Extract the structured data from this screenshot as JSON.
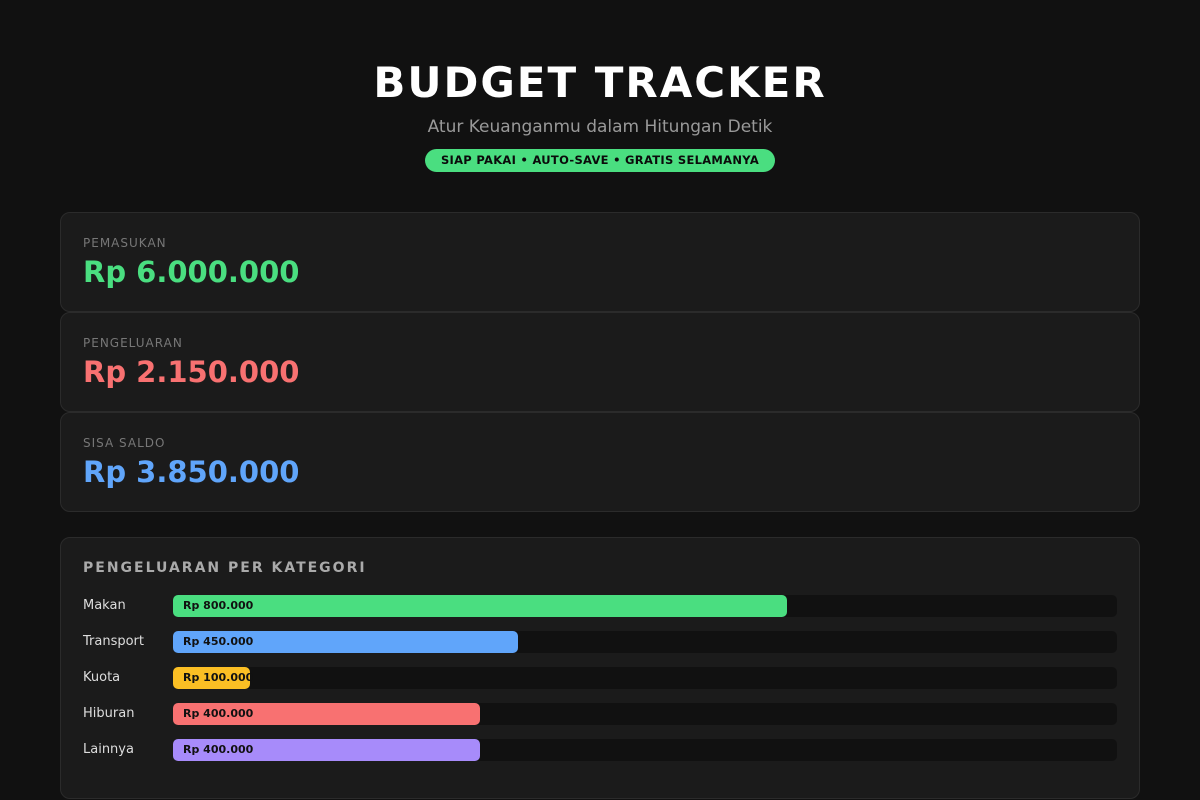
{
  "header": {
    "title": "BUDGET TRACKER",
    "subtitle": "Atur Keuanganmu dalam Hitungan Detik",
    "badge": "SIAP PAKAI • AUTO-SAVE • GRATIS SELAMANYA"
  },
  "summary": [
    {
      "label": "PEMASUKAN",
      "amount": "Rp 6.000.000",
      "color": "#4ade80"
    },
    {
      "label": "PENGELUARAN",
      "amount": "Rp 2.150.000",
      "color": "#f87171"
    },
    {
      "label": "SISA SALDO",
      "amount": "Rp 3.850.000",
      "color": "#60a5fa"
    }
  ],
  "chart_data": {
    "type": "bar",
    "orientation": "horizontal",
    "title": "PENGELUARAN PER KATEGORI",
    "categories": [
      "Makan",
      "Transport",
      "Kuota",
      "Hiburan",
      "Lainnya"
    ],
    "values": [
      800000,
      450000,
      100000,
      400000,
      400000
    ],
    "value_labels": [
      "Rp 800.000",
      "Rp 450.000",
      "Rp 100.000",
      "Rp 400.000",
      "Rp 400.000"
    ],
    "colors": [
      "#4ade80",
      "#60a5fa",
      "#fbbf24",
      "#f87171",
      "#a78bfa"
    ]
  }
}
